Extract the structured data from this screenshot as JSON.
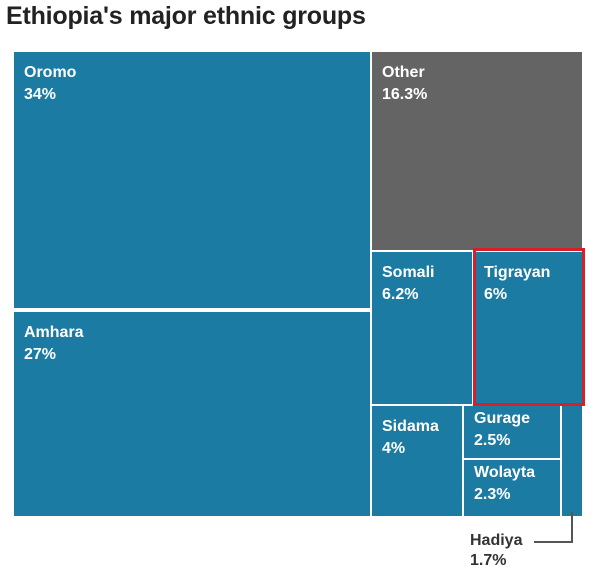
{
  "title": "Ethiopia's major ethnic groups",
  "colors": {
    "group": "#1b7ba3",
    "other": "#646464",
    "highlight": "#d61f26"
  },
  "highlighted_group": "Tigrayan",
  "chart_data": {
    "type": "treemap",
    "title": "Ethiopia's major ethnic groups",
    "unit": "%",
    "items": [
      {
        "name": "Oromo",
        "value": 34,
        "label": "34%"
      },
      {
        "name": "Amhara",
        "value": 27,
        "label": "27%"
      },
      {
        "name": "Other",
        "value": 16.3,
        "label": "16.3%"
      },
      {
        "name": "Somali",
        "value": 6.2,
        "label": "6.2%"
      },
      {
        "name": "Tigrayan",
        "value": 6,
        "label": "6%"
      },
      {
        "name": "Sidama",
        "value": 4,
        "label": "4%"
      },
      {
        "name": "Gurage",
        "value": 2.5,
        "label": "2.5%"
      },
      {
        "name": "Wolayta",
        "value": 2.3,
        "label": "2.3%"
      },
      {
        "name": "Hadiya",
        "value": 1.7,
        "label": "1.7%"
      }
    ]
  }
}
